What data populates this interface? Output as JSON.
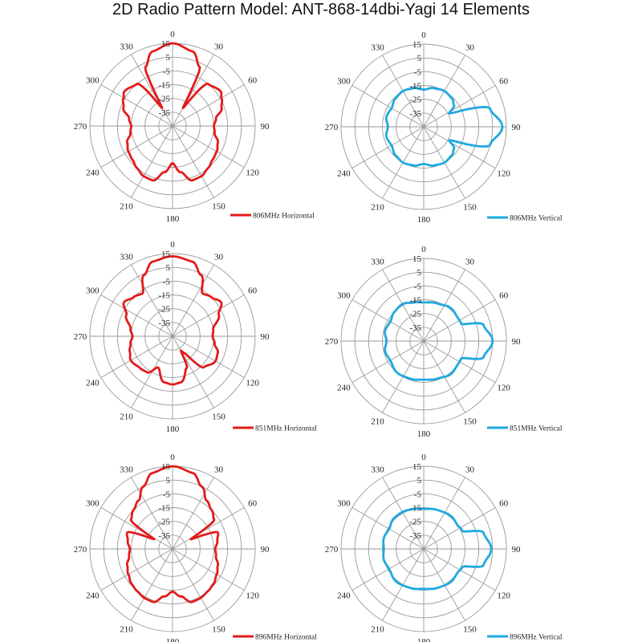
{
  "title": "2D Radio Pattern Model: ANT-868-14dbi-Yagi  14 Elements",
  "radial_ticks": [
    "15",
    "5",
    "-5",
    "-15",
    "-25",
    "-35"
  ],
  "angle_labels": [
    "0",
    "30",
    "60",
    "90",
    "120",
    "150",
    "180",
    "210",
    "240",
    "270",
    "300",
    "330"
  ],
  "colors": {
    "horizontal": "#e31b1b",
    "vertical": "#1fa9df",
    "grid": "#9a9a9a",
    "axis_text": "#222222"
  },
  "chart_data": [
    {
      "type": "polar",
      "legend": "806MHz Horizontal",
      "color": "#e31b1b",
      "rlim": [
        -45,
        15
      ],
      "grid": true,
      "legend_position": "bottom-right",
      "theta_deg": [
        0,
        15,
        25,
        30,
        40,
        55,
        60,
        70,
        80,
        90,
        100,
        110,
        120,
        130,
        140,
        150,
        160,
        170,
        180,
        190,
        200,
        210,
        220,
        230,
        240,
        250,
        260,
        270,
        280,
        290,
        300,
        305,
        320,
        330,
        335,
        345,
        360
      ],
      "r_db": [
        15,
        11,
        2,
        -30,
        -5,
        -2,
        -4,
        -7,
        -13,
        -15,
        -14,
        -10,
        -8,
        -7,
        -5,
        -3,
        -3,
        -11,
        -18,
        -11,
        -3,
        -3,
        -5,
        -7,
        -8,
        -10,
        -14,
        -15,
        -13,
        -7,
        -4,
        -2,
        -5,
        -30,
        2,
        11,
        15
      ]
    },
    {
      "type": "polar",
      "legend": "806MHz Vertical",
      "color": "#1fa9df",
      "rlim": [
        -45,
        15
      ],
      "grid": true,
      "legend_position": "bottom-right",
      "theta_deg": [
        0,
        15,
        30,
        45,
        55,
        62,
        75,
        90,
        105,
        118,
        125,
        135,
        150,
        165,
        180,
        195,
        210,
        225,
        240,
        255,
        270,
        285,
        300,
        315,
        330,
        345,
        360
      ],
      "r_db": [
        -18,
        -16,
        -15,
        -16,
        -18,
        -24,
        5,
        12,
        5,
        -24,
        -18,
        -16,
        -15,
        -16,
        -18,
        -16,
        -15,
        -16,
        -18,
        -17,
        -19,
        -17,
        -18,
        -16,
        -15,
        -16,
        -18
      ]
    },
    {
      "type": "polar",
      "legend": "851MHz Horizontal",
      "color": "#e31b1b",
      "rlim": [
        -45,
        15
      ],
      "grid": true,
      "legend_position": "bottom-right",
      "theta_deg": [
        0,
        15,
        25,
        35,
        45,
        55,
        65,
        80,
        90,
        100,
        110,
        120,
        135,
        145,
        150,
        155,
        170,
        180,
        190,
        205,
        215,
        225,
        240,
        250,
        260,
        270,
        280,
        295,
        305,
        315,
        325,
        335,
        345,
        360
      ],
      "r_db": [
        13,
        11,
        4,
        -7,
        -5,
        -2,
        -8,
        -15,
        -16,
        -14,
        -10,
        -9,
        -13,
        -30,
        -33,
        -20,
        -11,
        -10,
        -11,
        -20,
        -13,
        -12,
        -10,
        -12,
        -14,
        -16,
        -14,
        -8,
        -2,
        -5,
        -7,
        4,
        11,
        13
      ]
    },
    {
      "type": "polar",
      "legend": "851MHz Vertical",
      "color": "#1fa9df",
      "rlim": [
        -45,
        15
      ],
      "grid": true,
      "legend_position": "bottom-right",
      "theta_deg": [
        0,
        20,
        40,
        55,
        65,
        75,
        90,
        105,
        115,
        125,
        140,
        160,
        180,
        200,
        220,
        240,
        255,
        270,
        285,
        300,
        315,
        330,
        345,
        360
      ],
      "r_db": [
        -17,
        -16,
        -14,
        -15,
        -15,
        0,
        5,
        0,
        -15,
        -15,
        -14,
        -16,
        -17,
        -16,
        -15,
        -17,
        -16,
        -18,
        -16,
        -17,
        -15,
        -14,
        -16,
        -17
      ]
    },
    {
      "type": "polar",
      "legend": "896MHz Horizontal",
      "color": "#e31b1b",
      "rlim": [
        -45,
        15
      ],
      "grid": true,
      "legend_position": "bottom-right",
      "theta_deg": [
        0,
        15,
        25,
        35,
        45,
        55,
        62,
        70,
        80,
        90,
        100,
        110,
        120,
        130,
        140,
        150,
        160,
        170,
        180,
        190,
        200,
        210,
        220,
        230,
        240,
        250,
        260,
        270,
        280,
        290,
        298,
        305,
        315,
        325,
        335,
        345,
        360
      ],
      "r_db": [
        15,
        12,
        5,
        -2,
        -5,
        -8,
        -30,
        -10,
        -12,
        -14,
        -13,
        -10,
        -8,
        -6,
        -5,
        -4,
        -4,
        -10,
        -14,
        -10,
        -4,
        -4,
        -5,
        -6,
        -8,
        -10,
        -13,
        -14,
        -12,
        -10,
        -30,
        -8,
        -5,
        -2,
        5,
        12,
        15
      ]
    },
    {
      "type": "polar",
      "legend": "896MHz Vertical",
      "color": "#1fa9df",
      "rlim": [
        -45,
        15
      ],
      "grid": true,
      "legend_position": "bottom-right",
      "theta_deg": [
        0,
        20,
        40,
        55,
        65,
        75,
        90,
        105,
        115,
        125,
        140,
        160,
        180,
        200,
        220,
        240,
        255,
        270,
        285,
        300,
        315,
        330,
        345,
        360
      ],
      "r_db": [
        -16,
        -15,
        -14,
        -15,
        -14,
        0,
        4,
        0,
        -14,
        -15,
        -14,
        -15,
        -16,
        -15,
        -14,
        -16,
        -15,
        -16,
        -15,
        -16,
        -14,
        -14,
        -15,
        -16
      ]
    }
  ]
}
